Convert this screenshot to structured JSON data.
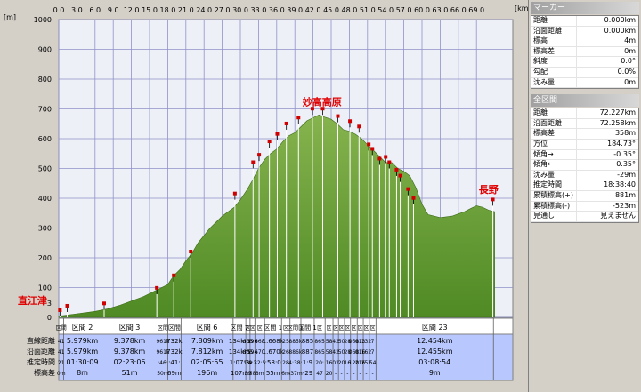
{
  "chart_data": {
    "type": "area",
    "xlabel": "[km]",
    "ylabel": "[m]",
    "xlim": [
      0,
      75
    ],
    "ylim": [
      0,
      1000
    ],
    "x_ticks": [
      "0.0",
      "3.0",
      "6.0",
      "9.0",
      "12.0",
      "15.0",
      "18.0",
      "21.0",
      "24.0",
      "27.0",
      "30.0",
      "33.0",
      "36.0",
      "39.0",
      "42.0",
      "45.0",
      "48.0",
      "51.0",
      "54.0",
      "57.0",
      "60.0",
      "63.0",
      "66.0",
      "69.0"
    ],
    "y_ticks": [
      "0",
      "100",
      "200",
      "300",
      "400",
      "500",
      "600",
      "700",
      "800",
      "900",
      "1000"
    ],
    "y_bottom_label": "3",
    "profile": {
      "x": [
        0,
        3,
        6,
        8,
        10,
        12,
        14,
        16,
        18,
        19,
        20,
        21,
        22,
        23,
        25,
        27,
        29,
        30,
        31,
        32,
        33,
        34,
        35,
        36,
        37,
        38,
        39,
        40,
        41,
        42,
        43,
        44,
        45,
        46,
        47,
        48,
        49,
        50,
        51,
        52,
        53,
        54,
        55,
        56,
        57,
        58,
        59,
        60,
        61,
        63,
        65,
        67,
        68,
        69,
        70,
        71,
        72
      ],
      "y": [
        4,
        12,
        20,
        28,
        40,
        55,
        70,
        90,
        110,
        140,
        160,
        190,
        215,
        250,
        300,
        340,
        370,
        395,
        425,
        460,
        500,
        530,
        550,
        565,
        590,
        610,
        620,
        640,
        660,
        670,
        680,
        672,
        665,
        650,
        630,
        625,
        615,
        600,
        580,
        560,
        540,
        520,
        520,
        500,
        490,
        475,
        435,
        380,
        345,
        335,
        340,
        355,
        365,
        375,
        370,
        360,
        355
      ]
    },
    "annotations": [
      {
        "text": "直江津",
        "x": 0.1,
        "y": 3
      },
      {
        "text": "妙高高原",
        "x": 43.5,
        "y": 682
      },
      {
        "text": "長野",
        "x": 71.0,
        "y": 370
      }
    ],
    "markers": [
      {
        "x": 0.2,
        "y": 3
      },
      {
        "x": 1.4,
        "y": 18
      },
      {
        "x": 7.5,
        "y": 26
      },
      {
        "x": 16.2,
        "y": 78
      },
      {
        "x": 19.0,
        "y": 120
      },
      {
        "x": 21.8,
        "y": 200
      },
      {
        "x": 29.1,
        "y": 395
      },
      {
        "x": 32.1,
        "y": 500
      },
      {
        "x": 33.1,
        "y": 525
      },
      {
        "x": 34.8,
        "y": 570
      },
      {
        "x": 36.1,
        "y": 595
      },
      {
        "x": 37.6,
        "y": 630
      },
      {
        "x": 39.6,
        "y": 650
      },
      {
        "x": 41.9,
        "y": 680
      },
      {
        "x": 43.6,
        "y": 680
      },
      {
        "x": 46.1,
        "y": 655
      },
      {
        "x": 48.1,
        "y": 638
      },
      {
        "x": 49.6,
        "y": 620
      },
      {
        "x": 51.2,
        "y": 560
      },
      {
        "x": 51.8,
        "y": 545
      },
      {
        "x": 53.0,
        "y": 512
      },
      {
        "x": 54.0,
        "y": 518
      },
      {
        "x": 54.6,
        "y": 500
      },
      {
        "x": 55.8,
        "y": 475
      },
      {
        "x": 56.4,
        "y": 455
      },
      {
        "x": 57.7,
        "y": 410
      },
      {
        "x": 58.6,
        "y": 380
      },
      {
        "x": 71.7,
        "y": 375
      }
    ],
    "grid": true
  },
  "sections": [
    {
      "x0": 0,
      "x1": 0.8,
      "label": "区間",
      "d1": "41",
      "d2": "41",
      "d3": "21",
      "d4": "0m"
    },
    {
      "x0": 0.8,
      "x1": 7.0,
      "label": "区間 2",
      "d1": "5.979km",
      "d2": "5.979km",
      "d3": "01:30:09",
      "d4": "8m"
    },
    {
      "x0": 7.0,
      "x1": 16.4,
      "label": "区間 3",
      "d1": "9.378km",
      "d2": "9.378km",
      "d3": "02:23:06",
      "d4": "51m"
    },
    {
      "x0": 16.4,
      "x1": 18.0,
      "label": "区間",
      "d1": "961k",
      "d2": "961k",
      "d3": ":46:",
      "d4": "50m"
    },
    {
      "x0": 18.0,
      "x1": 20.2,
      "label": "区間",
      "d1": "732k",
      "d2": "732k",
      "d3": ":41:",
      "d4": "69m"
    },
    {
      "x0": 20.2,
      "x1": 28.8,
      "label": "区間 6",
      "d1": "7.809km",
      "d2": "7.812km",
      "d3": "02:05:55",
      "d4": "196m"
    },
    {
      "x0": 28.8,
      "x1": 30.9,
      "label": "区間 7",
      "d1": "134km",
      "d2": "134km",
      "d3": "1:07:3",
      "d4": "107m"
    },
    {
      "x0": 30.9,
      "x1": 31.6,
      "label": "区",
      "d1": "605",
      "d2": "605",
      "d3": "1:9",
      "d4": "39"
    },
    {
      "x0": 31.6,
      "x1": 32.4,
      "label": "区",
      "d1": "590",
      "d2": "594",
      "d3": "4:2",
      "d4": "58"
    },
    {
      "x0": 32.4,
      "x1": 34.0,
      "label": "区",
      "d1": "668",
      "d2": "670",
      "d3": "32:5",
      "d4": "8m"
    },
    {
      "x0": 34.0,
      "x1": 36.8,
      "label": "区間 1",
      "d1": "1.668k",
      "d2": "1.670k",
      "d3": ":58:0",
      "d4": "55m"
    },
    {
      "x0": 36.8,
      "x1": 38.2,
      "label": "区",
      "d1": "25",
      "d2": "26",
      "d3": "28",
      "d4": "6m"
    },
    {
      "x0": 38.2,
      "x1": 40.0,
      "label": "区間 1",
      "d1": "885k",
      "d2": "886k",
      "d3": "4:38:",
      "d4": "-37m"
    },
    {
      "x0": 40.0,
      "x1": 42.2,
      "label": "区間 1",
      "d1": "885",
      "d2": "887",
      "d3": "1:9",
      "d4": "-29"
    },
    {
      "x0": 42.2,
      "x1": 44.0,
      "label": "区",
      "d1": "865",
      "d2": "865",
      "d3": "20:",
      "d4": "47"
    },
    {
      "x0": 44.0,
      "x1": 45.3,
      "label": "区",
      "d1": "58",
      "d2": "58",
      "d3": "16",
      "d4": "20"
    },
    {
      "x0": 45.3,
      "x1": 46.2,
      "label": "区",
      "d1": "42",
      "d2": "42",
      "d3": "02",
      "d4": "-"
    },
    {
      "x0": 46.2,
      "x1": 47.2,
      "label": "区",
      "d1": "50",
      "d2": "50",
      "d3": "20",
      "d4": "-"
    },
    {
      "x0": 47.2,
      "x1": 48.2,
      "label": "区",
      "d1": "28",
      "d2": "28",
      "d3": "16",
      "d4": "-"
    },
    {
      "x0": 48.2,
      "x1": 49.3,
      "label": "区",
      "d1": "058",
      "d2": "068",
      "d3": "120",
      "d4": "-"
    },
    {
      "x0": 49.3,
      "x1": 50.3,
      "label": "区",
      "d1": "013",
      "d2": "016",
      "d3": "216",
      "d4": "-"
    },
    {
      "x0": 50.3,
      "x1": 51.3,
      "label": "区",
      "d1": "132",
      "d2": "162",
      "d3": "257",
      "d4": "-"
    },
    {
      "x0": 51.3,
      "x1": 52.4,
      "label": "区",
      "d1": "7",
      "d2": "7",
      "d3": "54",
      "d4": "-"
    },
    {
      "x0": 52.4,
      "x1": 71.8,
      "label": "区間 23",
      "d1": "12.454km",
      "d2": "12.455km",
      "d3": "03:08:54",
      "d4": "9m"
    }
  ],
  "row_labels": [
    "直線距離",
    "沿面距離",
    "推定時間",
    "標高差"
  ],
  "panel": {
    "marker_title": "マーカー",
    "marker_rows": [
      {
        "k": "距離",
        "v": "0.000km"
      },
      {
        "k": "沿面距離",
        "v": "0.000km"
      },
      {
        "k": "標高",
        "v": "4m"
      },
      {
        "k": "標高差",
        "v": "0m"
      },
      {
        "k": "斜度",
        "v": "0.0°"
      },
      {
        "k": "勾配",
        "v": "0.0%"
      },
      {
        "k": "沈み量",
        "v": "0m"
      }
    ],
    "all_title": "全区間",
    "all_rows": [
      {
        "k": "距離",
        "v": "72.227km"
      },
      {
        "k": "沿面距離",
        "v": "72.258km"
      },
      {
        "k": "標高差",
        "v": "358m"
      },
      {
        "k": "方位",
        "v": "184.73°"
      },
      {
        "k": "傾角→",
        "v": "-0.35°"
      },
      {
        "k": "傾角←",
        "v": "0.35°"
      },
      {
        "k": "沈み量",
        "v": "-29m"
      },
      {
        "k": "推定時間",
        "v": "18:38:40"
      },
      {
        "k": "累積標高(+)",
        "v": "881m"
      },
      {
        "k": "累積標高(-)",
        "v": "-523m"
      },
      {
        "k": "見通し",
        "v": "見えません"
      }
    ]
  },
  "colors": {
    "fill": "#6b9d3a",
    "fill_dark": "#4a7a22",
    "bg": "#eef0f8",
    "grid": "#8f92c8",
    "marker": "#d00000",
    "label": "#e00000"
  }
}
